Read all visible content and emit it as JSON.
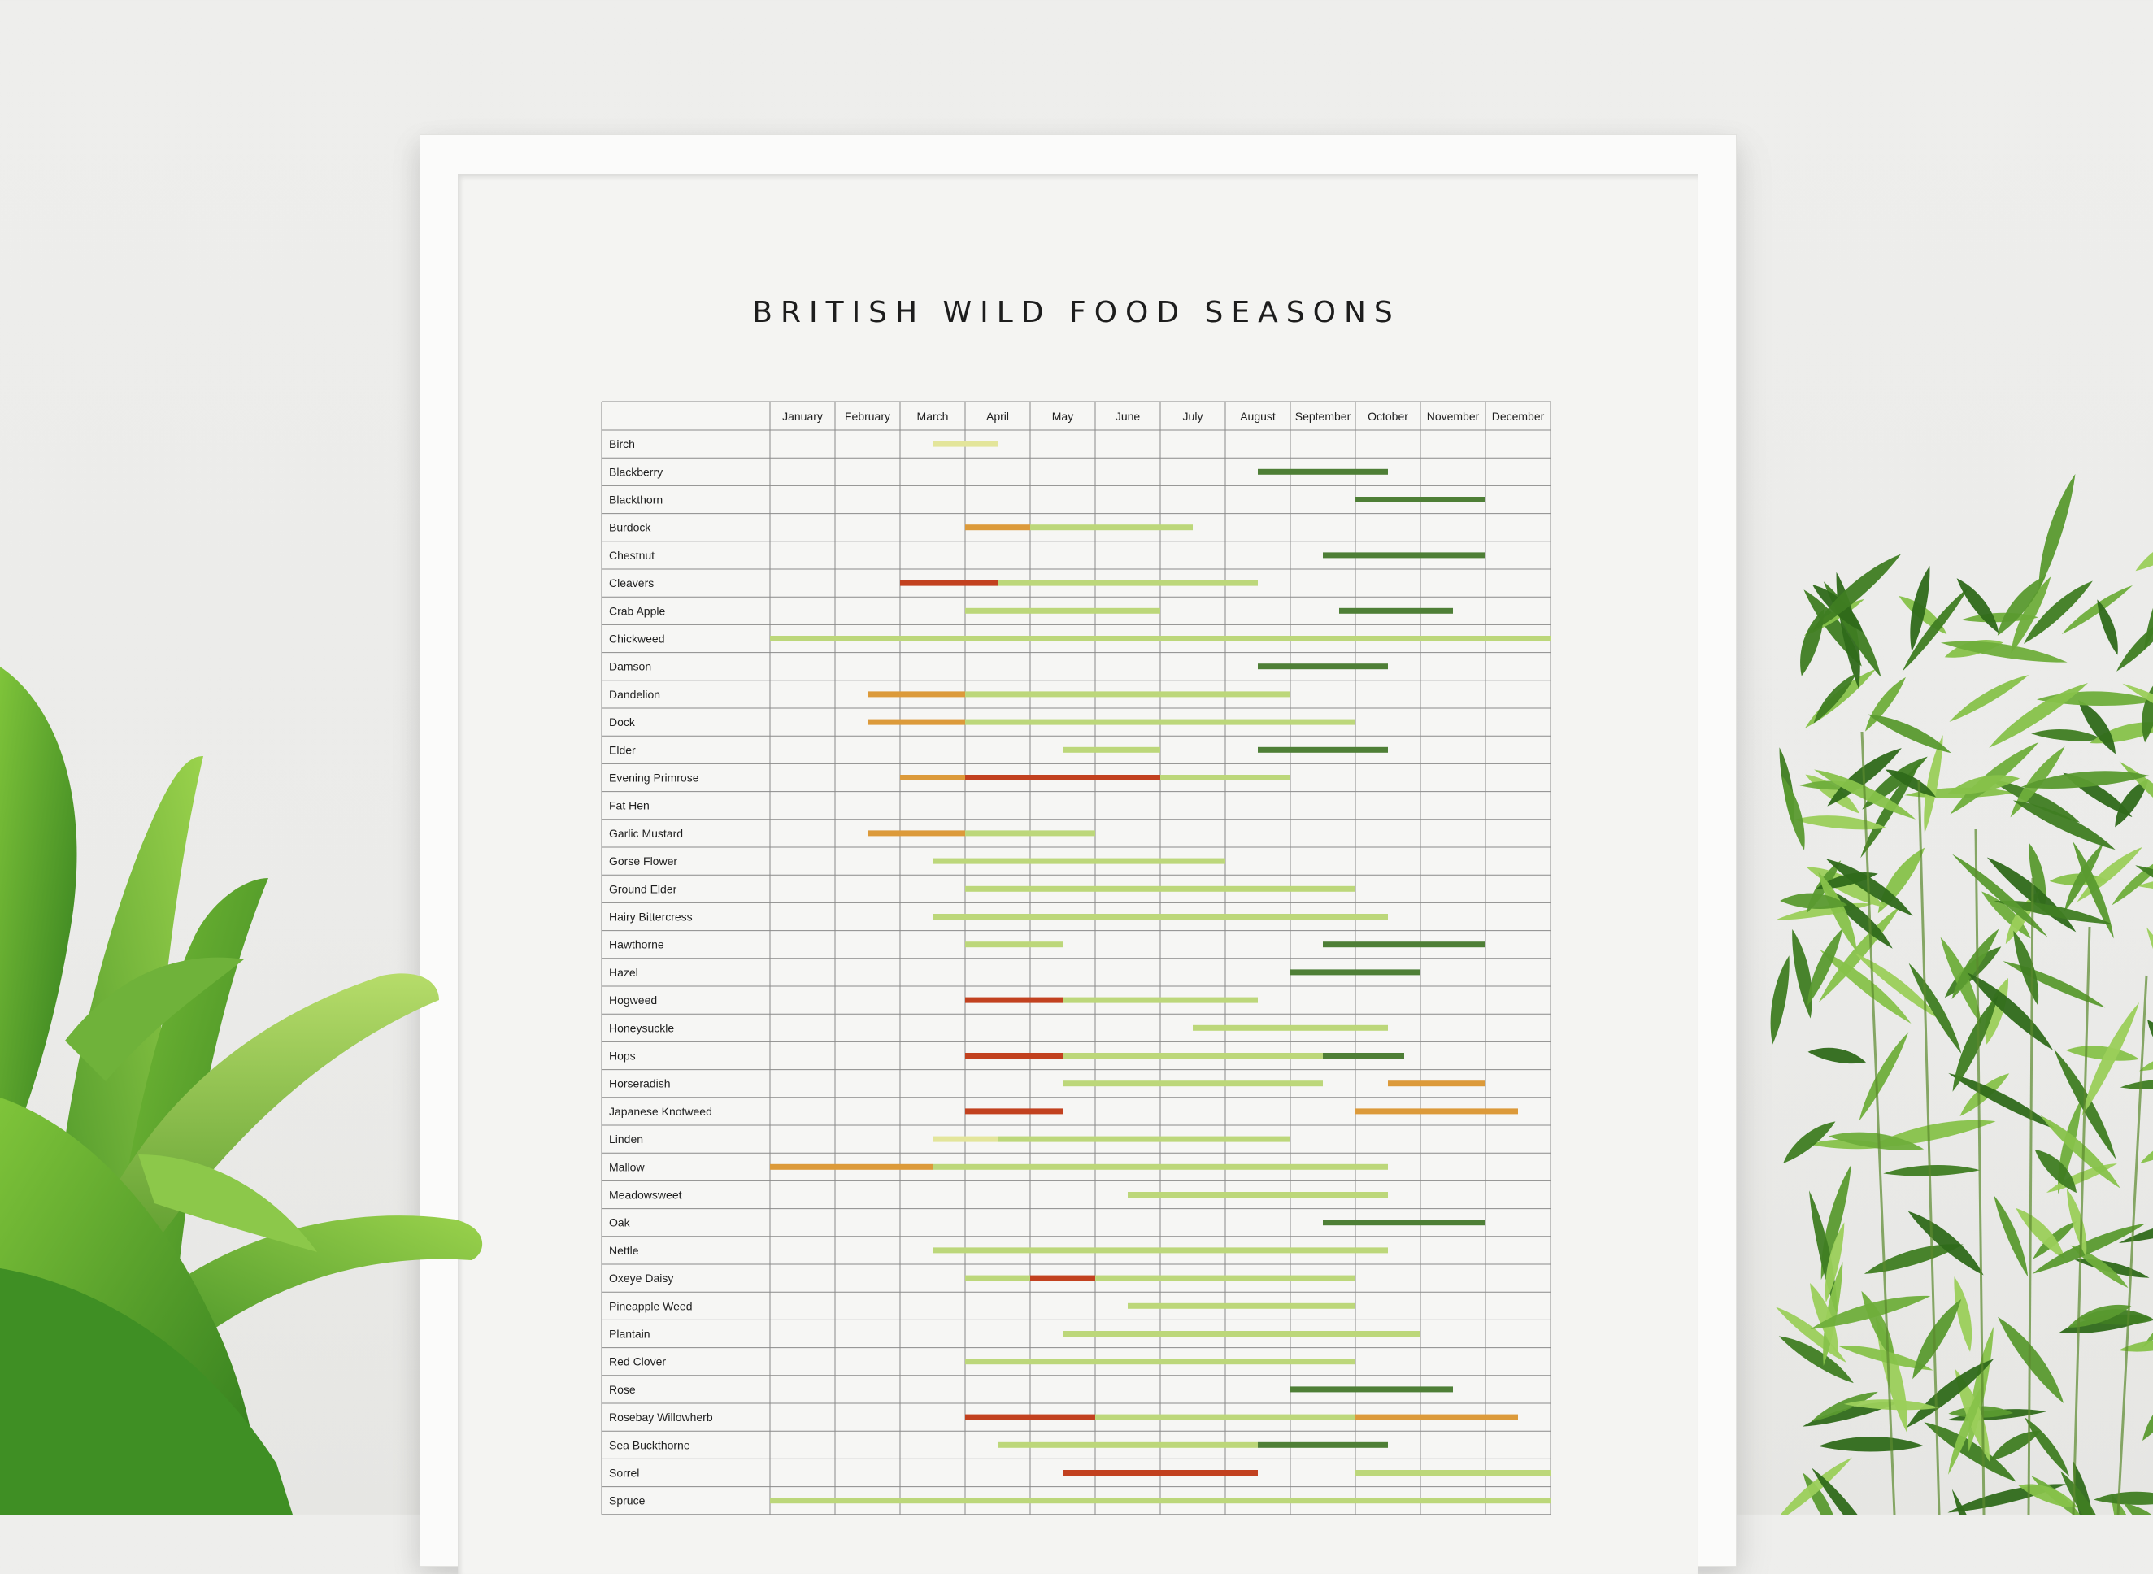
{
  "title": "BRITISH WILD FOOD SEASONS",
  "chart_data": {
    "type": "gantt",
    "title": "BRITISH WILD FOOD SEASONS",
    "months": [
      "January",
      "February",
      "March",
      "April",
      "May",
      "June",
      "July",
      "August",
      "September",
      "October",
      "November",
      "December"
    ],
    "colors": {
      "pale_yellow": "#e3e59a",
      "light_green": "#bcd77a",
      "dark_green": "#4e7f36",
      "orange": "#dc9a3a",
      "red": "#c2411f"
    },
    "rows": [
      {
        "name": "Birch",
        "bars": [
          {
            "start": 2.5,
            "end": 3.5,
            "color": "pale_yellow"
          }
        ]
      },
      {
        "name": "Blackberry",
        "bars": [
          {
            "start": 7.5,
            "end": 9.5,
            "color": "dark_green"
          }
        ]
      },
      {
        "name": "Blackthorn",
        "bars": [
          {
            "start": 9,
            "end": 11,
            "color": "dark_green"
          }
        ]
      },
      {
        "name": "Burdock",
        "bars": [
          {
            "start": 3,
            "end": 4,
            "color": "orange"
          },
          {
            "start": 4,
            "end": 6.5,
            "color": "light_green"
          }
        ]
      },
      {
        "name": "Chestnut",
        "bars": [
          {
            "start": 8.5,
            "end": 11,
            "color": "dark_green"
          }
        ]
      },
      {
        "name": "Cleavers",
        "bars": [
          {
            "start": 2,
            "end": 3.5,
            "color": "red"
          },
          {
            "start": 3.5,
            "end": 7.5,
            "color": "light_green"
          }
        ]
      },
      {
        "name": "Crab Apple",
        "bars": [
          {
            "start": 3,
            "end": 6,
            "color": "light_green"
          },
          {
            "start": 8.75,
            "end": 10.5,
            "color": "dark_green"
          }
        ]
      },
      {
        "name": "Chickweed",
        "bars": [
          {
            "start": 0,
            "end": 12,
            "color": "light_green"
          }
        ]
      },
      {
        "name": "Damson",
        "bars": [
          {
            "start": 7.5,
            "end": 9.5,
            "color": "dark_green"
          }
        ]
      },
      {
        "name": "Dandelion",
        "bars": [
          {
            "start": 1.5,
            "end": 3,
            "color": "orange"
          },
          {
            "start": 3,
            "end": 8,
            "color": "light_green"
          }
        ]
      },
      {
        "name": "Dock",
        "bars": [
          {
            "start": 1.5,
            "end": 3,
            "color": "orange"
          },
          {
            "start": 3,
            "end": 9,
            "color": "light_green"
          }
        ]
      },
      {
        "name": "Elder",
        "bars": [
          {
            "start": 4.5,
            "end": 6,
            "color": "light_green"
          },
          {
            "start": 7.5,
            "end": 9.5,
            "color": "dark_green"
          }
        ]
      },
      {
        "name": "Evening Primrose",
        "bars": [
          {
            "start": 2,
            "end": 3,
            "color": "orange"
          },
          {
            "start": 3,
            "end": 6,
            "color": "red"
          },
          {
            "start": 6,
            "end": 8,
            "color": "light_green"
          }
        ]
      },
      {
        "name": "Fat Hen",
        "bars": []
      },
      {
        "name": "Garlic Mustard",
        "bars": [
          {
            "start": 1.5,
            "end": 3,
            "color": "orange"
          },
          {
            "start": 3,
            "end": 5,
            "color": "light_green"
          }
        ]
      },
      {
        "name": "Gorse Flower",
        "bars": [
          {
            "start": 2.5,
            "end": 7,
            "color": "light_green"
          }
        ]
      },
      {
        "name": "Ground Elder",
        "bars": [
          {
            "start": 3,
            "end": 9,
            "color": "light_green"
          }
        ]
      },
      {
        "name": "Hairy Bittercress",
        "bars": [
          {
            "start": 2.5,
            "end": 9.5,
            "color": "light_green"
          }
        ]
      },
      {
        "name": "Hawthorne",
        "bars": [
          {
            "start": 3,
            "end": 4.5,
            "color": "light_green"
          },
          {
            "start": 8.5,
            "end": 11,
            "color": "dark_green"
          }
        ]
      },
      {
        "name": "Hazel",
        "bars": [
          {
            "start": 8,
            "end": 10,
            "color": "dark_green"
          }
        ]
      },
      {
        "name": "Hogweed",
        "bars": [
          {
            "start": 3,
            "end": 4.5,
            "color": "red"
          },
          {
            "start": 4.5,
            "end": 7.5,
            "color": "light_green"
          }
        ]
      },
      {
        "name": "Honeysuckle",
        "bars": [
          {
            "start": 6.5,
            "end": 9.5,
            "color": "light_green"
          }
        ]
      },
      {
        "name": "Hops",
        "bars": [
          {
            "start": 3,
            "end": 4.5,
            "color": "red"
          },
          {
            "start": 4.5,
            "end": 8.5,
            "color": "light_green"
          },
          {
            "start": 8.5,
            "end": 9.75,
            "color": "dark_green"
          }
        ]
      },
      {
        "name": "Horseradish",
        "bars": [
          {
            "start": 4.5,
            "end": 8.5,
            "color": "light_green"
          },
          {
            "start": 9.5,
            "end": 11,
            "color": "orange"
          }
        ]
      },
      {
        "name": "Japanese Knotweed",
        "bars": [
          {
            "start": 3,
            "end": 4.5,
            "color": "red"
          },
          {
            "start": 9,
            "end": 11.5,
            "color": "orange"
          }
        ]
      },
      {
        "name": "Linden",
        "bars": [
          {
            "start": 2.5,
            "end": 3.5,
            "color": "pale_yellow"
          },
          {
            "start": 3.5,
            "end": 8,
            "color": "light_green"
          }
        ]
      },
      {
        "name": "Mallow",
        "bars": [
          {
            "start": 0,
            "end": 2.5,
            "color": "orange"
          },
          {
            "start": 2.5,
            "end": 9.5,
            "color": "light_green"
          }
        ]
      },
      {
        "name": "Meadowsweet",
        "bars": [
          {
            "start": 5.5,
            "end": 9.5,
            "color": "light_green"
          }
        ]
      },
      {
        "name": "Oak",
        "bars": [
          {
            "start": 8.5,
            "end": 11,
            "color": "dark_green"
          }
        ]
      },
      {
        "name": "Nettle",
        "bars": [
          {
            "start": 2.5,
            "end": 9.5,
            "color": "light_green"
          }
        ]
      },
      {
        "name": "Oxeye Daisy",
        "bars": [
          {
            "start": 3,
            "end": 4,
            "color": "light_green"
          },
          {
            "start": 4,
            "end": 5,
            "color": "red"
          },
          {
            "start": 5,
            "end": 9,
            "color": "light_green"
          }
        ]
      },
      {
        "name": "Pineapple Weed",
        "bars": [
          {
            "start": 5.5,
            "end": 9,
            "color": "light_green"
          }
        ]
      },
      {
        "name": "Plantain",
        "bars": [
          {
            "start": 4.5,
            "end": 10,
            "color": "light_green"
          }
        ]
      },
      {
        "name": "Red Clover",
        "bars": [
          {
            "start": 3,
            "end": 9,
            "color": "light_green"
          }
        ]
      },
      {
        "name": "Rose",
        "bars": [
          {
            "start": 8,
            "end": 10.5,
            "color": "dark_green"
          }
        ]
      },
      {
        "name": "Rosebay Willowherb",
        "bars": [
          {
            "start": 3,
            "end": 5,
            "color": "red"
          },
          {
            "start": 5,
            "end": 9,
            "color": "light_green"
          },
          {
            "start": 9,
            "end": 11.5,
            "color": "orange"
          }
        ]
      },
      {
        "name": "Sea Buckthorne",
        "bars": [
          {
            "start": 3.5,
            "end": 7.5,
            "color": "light_green"
          },
          {
            "start": 7.5,
            "end": 9.5,
            "color": "dark_green"
          }
        ]
      },
      {
        "name": "Sorrel",
        "bars": [
          {
            "start": 4.5,
            "end": 7.5,
            "color": "red"
          },
          {
            "start": 9,
            "end": 12,
            "color": "light_green"
          }
        ]
      },
      {
        "name": "Spruce",
        "bars": [
          {
            "start": 0,
            "end": 12,
            "color": "light_green"
          }
        ]
      }
    ]
  }
}
